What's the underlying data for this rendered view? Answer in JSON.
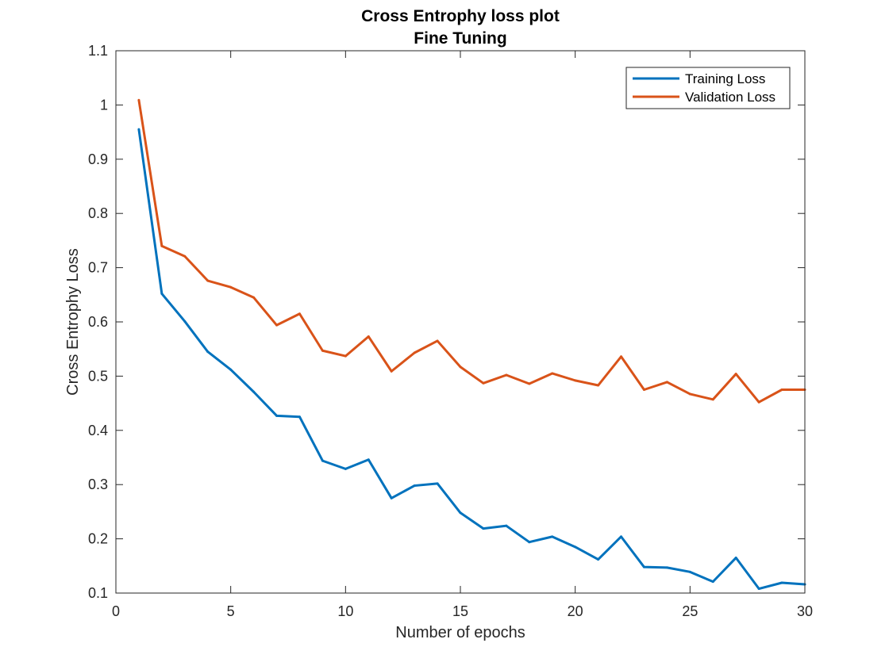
{
  "chart_data": {
    "type": "line",
    "title": "Cross Entrophy loss plot",
    "subtitle": "Fine Tuning",
    "xlabel": "Number of epochs",
    "ylabel": "Cross Entrophy Loss",
    "xlim": [
      0,
      30
    ],
    "ylim": [
      0.1,
      1.1
    ],
    "xticks": [
      0,
      5,
      10,
      15,
      20,
      25,
      30
    ],
    "yticks": [
      0.1,
      0.2,
      0.3,
      0.4,
      0.5,
      0.6,
      0.7,
      0.8,
      0.9,
      1,
      1.1
    ],
    "grid": false,
    "legend_position": "top-right",
    "x": [
      1,
      2,
      3,
      4,
      5,
      6,
      7,
      8,
      9,
      10,
      11,
      12,
      13,
      14,
      15,
      16,
      17,
      18,
      19,
      20,
      21,
      22,
      23,
      24,
      25,
      26,
      27,
      28,
      29,
      30
    ],
    "series": [
      {
        "name": "Training Loss",
        "color": "#0072BD",
        "values": [
          0.955,
          0.652,
          0.601,
          0.545,
          0.512,
          0.471,
          0.427,
          0.425,
          0.344,
          0.329,
          0.346,
          0.275,
          0.298,
          0.302,
          0.248,
          0.219,
          0.224,
          0.194,
          0.204,
          0.185,
          0.162,
          0.204,
          0.148,
          0.147,
          0.139,
          0.121,
          0.165,
          0.108,
          0.119,
          0.116
        ]
      },
      {
        "name": "Validation Loss",
        "color": "#D95319",
        "values": [
          1.009,
          0.74,
          0.721,
          0.676,
          0.664,
          0.645,
          0.594,
          0.615,
          0.547,
          0.537,
          0.573,
          0.509,
          0.543,
          0.565,
          0.517,
          0.487,
          0.502,
          0.486,
          0.505,
          0.492,
          0.483,
          0.536,
          0.475,
          0.489,
          0.467,
          0.457,
          0.504,
          0.452,
          0.475,
          0.475
        ]
      }
    ]
  }
}
